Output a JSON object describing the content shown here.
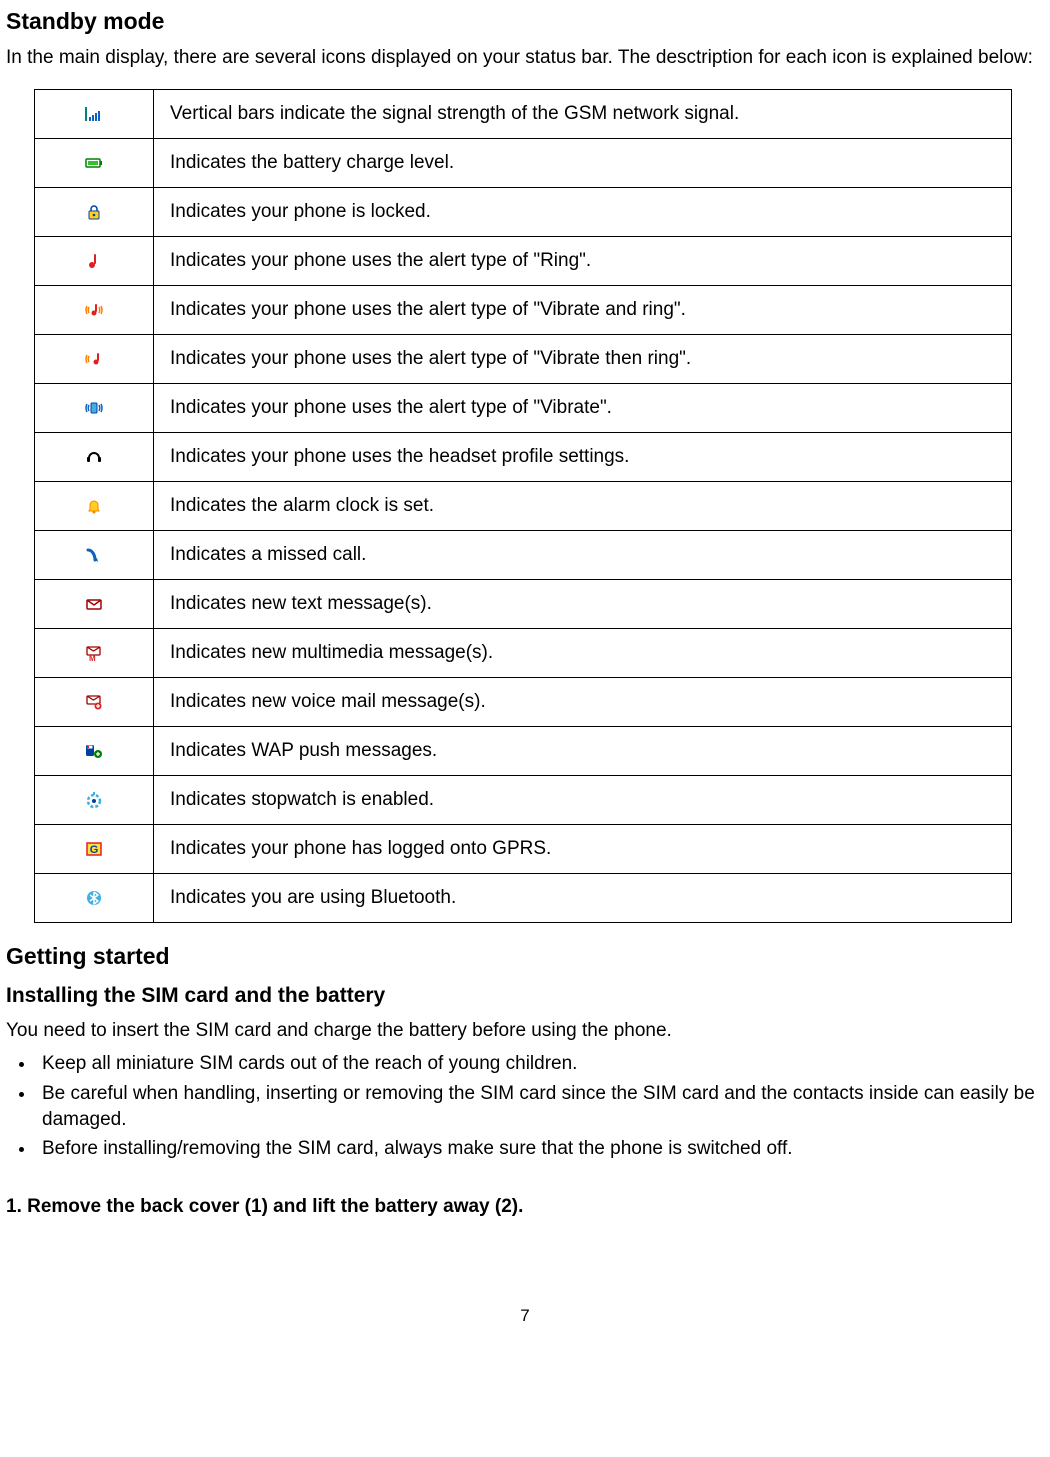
{
  "page_number": "7",
  "standby": {
    "title": "Standby mode",
    "intro": "In the main display, there are several icons displayed on your status bar. The desctription for each icon is explained below:"
  },
  "getting_started": {
    "title": "Getting started",
    "subtitle": "Installing the SIM card and the battery",
    "intro": "You need to insert the SIM card and charge the battery before using the phone.",
    "bullets": [
      "Keep all miniature SIM cards out of the reach of young children.",
      "Be careful when handling, inserting or removing the SIM card since the SIM card and the contacts inside can easily be damaged.",
      "Before installing/removing the SIM card, always make sure that the phone is switched off."
    ],
    "step1": "1. Remove the back cover (1) and lift the battery away (2)."
  },
  "table": {
    "border_color": "#000000",
    "rows": [
      {
        "icon": "signal",
        "desc": "Vertical bars indicate the signal strength of the GSM network signal."
      },
      {
        "icon": "battery",
        "desc": "Indicates the battery charge level."
      },
      {
        "icon": "lock",
        "desc": "Indicates your phone is locked."
      },
      {
        "icon": "ring",
        "desc": "Indicates your phone uses the alert type of \"Ring\"."
      },
      {
        "icon": "vibrate-ring",
        "desc": "Indicates your phone uses the alert type of \"Vibrate and ring\"."
      },
      {
        "icon": "vibrate-then-ring",
        "desc": "Indicates your phone uses the alert type of \"Vibrate then ring\"."
      },
      {
        "icon": "vibrate",
        "desc": "Indicates your phone uses the alert type of \"Vibrate\"."
      },
      {
        "icon": "headset",
        "desc": "Indicates your phone uses the headset profile settings."
      },
      {
        "icon": "alarm",
        "desc": "Indicates the alarm clock is set."
      },
      {
        "icon": "missed-call",
        "desc": "Indicates a missed call."
      },
      {
        "icon": "sms",
        "desc": "Indicates new text message(s)."
      },
      {
        "icon": "mms",
        "desc": "Indicates new multimedia message(s)."
      },
      {
        "icon": "voicemail",
        "desc": "Indicates new voice mail message(s)."
      },
      {
        "icon": "wap-push",
        "desc": "Indicates WAP push messages."
      },
      {
        "icon": "stopwatch",
        "desc": "Indicates stopwatch is enabled."
      },
      {
        "icon": "gprs",
        "desc": "Indicates your phone has logged onto GPRS."
      },
      {
        "icon": "bluetooth",
        "desc": "Indicates you are using Bluetooth."
      }
    ]
  },
  "colors": {
    "blue": "#1060c0",
    "deep_blue": "#0040a0",
    "cyan": "#40b0e0",
    "teal": "#008080",
    "green_border": "#008000",
    "battery_fill": "#30c030",
    "yellow": "#ffd020",
    "orange": "#ff8000",
    "red": "#e02020",
    "dark_red": "#a00000",
    "purple": "#6040c0",
    "gray": "#808080",
    "black": "#000000",
    "white": "#ffffff",
    "gprs_bg": "#ffe040"
  },
  "fonts": {
    "title_size": 23,
    "body_size": 19
  }
}
